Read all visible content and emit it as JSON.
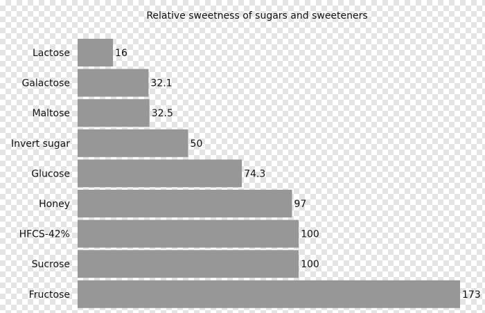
{
  "chart_data": {
    "type": "bar",
    "orientation": "horizontal",
    "title": "Relative sweetness of sugars and sweeteners",
    "xlabel": "",
    "ylabel": "",
    "categories": [
      "Lactose",
      "Galactose",
      "Maltose",
      "Invert sugar",
      "Glucose",
      "Honey",
      "HFCS-42%",
      "Sucrose",
      "Fructose"
    ],
    "values": [
      16,
      32.1,
      32.5,
      50,
      74.3,
      97,
      100,
      100,
      173
    ],
    "value_labels": [
      "16",
      "32.1",
      "32.5",
      "50",
      "74.3",
      "97",
      "100",
      "100",
      "173"
    ],
    "xlim": [
      0,
      173
    ],
    "grid": false,
    "legend": "none",
    "bar_color": "#979797"
  }
}
